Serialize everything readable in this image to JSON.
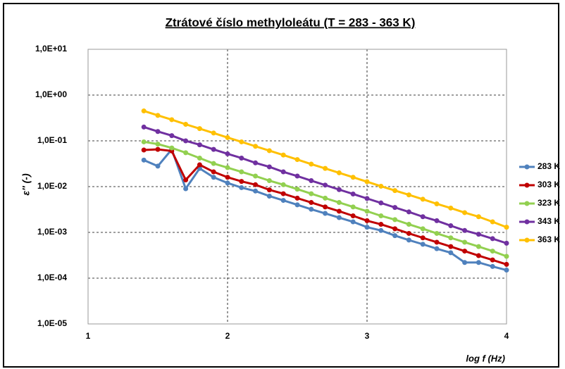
{
  "chart_data": {
    "type": "line",
    "title": "Ztrátové číslo methyloleátu (T = 283 - 363 K)",
    "x_label": "log f (Hz)",
    "y_label": "ε'' (-)",
    "x": [
      1.4,
      1.5,
      1.6,
      1.7,
      1.8,
      1.9,
      2.0,
      2.1,
      2.2,
      2.3,
      2.4,
      2.5,
      2.6,
      2.7,
      2.8,
      2.9,
      3.0,
      3.1,
      3.2,
      3.3,
      3.4,
      3.5,
      3.6,
      3.7,
      3.8,
      3.9,
      4.0
    ],
    "series": [
      {
        "name": "283 K",
        "color": "#4F81BD",
        "values": [
          0.038,
          0.028,
          0.065,
          0.009,
          0.025,
          0.016,
          0.012,
          0.0095,
          0.008,
          0.0062,
          0.005,
          0.004,
          0.0032,
          0.0026,
          0.0021,
          0.0017,
          0.0013,
          0.0011,
          0.00085,
          0.00068,
          0.00055,
          0.00044,
          0.00036,
          0.00022,
          0.00022,
          0.00018,
          0.00015
        ]
      },
      {
        "name": "303 K",
        "color": "#C00000",
        "values": [
          0.063,
          0.065,
          0.06,
          0.014,
          0.03,
          0.021,
          0.016,
          0.013,
          0.011,
          0.0085,
          0.007,
          0.0056,
          0.0045,
          0.0036,
          0.0029,
          0.0023,
          0.0018,
          0.0015,
          0.0012,
          0.00095,
          0.00076,
          0.00061,
          0.00049,
          0.00039,
          0.00031,
          0.00025,
          0.0002
        ]
      },
      {
        "name": "323 K",
        "color": "#92D050",
        "values": [
          0.095,
          0.085,
          0.07,
          0.055,
          0.042,
          0.032,
          0.026,
          0.021,
          0.017,
          0.0135,
          0.011,
          0.0088,
          0.007,
          0.0056,
          0.0045,
          0.0036,
          0.0029,
          0.0023,
          0.0019,
          0.0015,
          0.0012,
          0.00095,
          0.00076,
          0.00061,
          0.00049,
          0.00039,
          0.0003
        ]
      },
      {
        "name": "343 K",
        "color": "#7030A0",
        "values": [
          0.2,
          0.16,
          0.13,
          0.1,
          0.082,
          0.065,
          0.052,
          0.042,
          0.033,
          0.027,
          0.021,
          0.017,
          0.0135,
          0.0108,
          0.0086,
          0.0069,
          0.0055,
          0.0044,
          0.0035,
          0.0028,
          0.0022,
          0.0018,
          0.0014,
          0.0011,
          0.00091,
          0.00073,
          0.00058
        ]
      },
      {
        "name": "363 K",
        "color": "#FFC000",
        "values": [
          0.45,
          0.36,
          0.29,
          0.23,
          0.185,
          0.148,
          0.118,
          0.095,
          0.076,
          0.061,
          0.049,
          0.039,
          0.031,
          0.025,
          0.02,
          0.016,
          0.0128,
          0.0102,
          0.0082,
          0.0066,
          0.0053,
          0.0042,
          0.0034,
          0.0027,
          0.0022,
          0.0017,
          0.0013
        ]
      }
    ],
    "xlim": [
      1,
      4
    ],
    "xticks": [
      1,
      2,
      3,
      4
    ],
    "ylim": [
      1e-05,
      10
    ],
    "y_log": true,
    "yticks": [
      {
        "value": 1e-05,
        "label": "1,0E-05"
      },
      {
        "value": 0.0001,
        "label": "1,0E-04"
      },
      {
        "value": 0.001,
        "label": "1,0E-03"
      },
      {
        "value": 0.01,
        "label": "1,0E-02"
      },
      {
        "value": 0.1,
        "label": "1,0E-01"
      },
      {
        "value": 1,
        "label": "1,0E+00"
      },
      {
        "value": 10,
        "label": "1,0E+01"
      }
    ],
    "grid": true,
    "legend": "right"
  }
}
